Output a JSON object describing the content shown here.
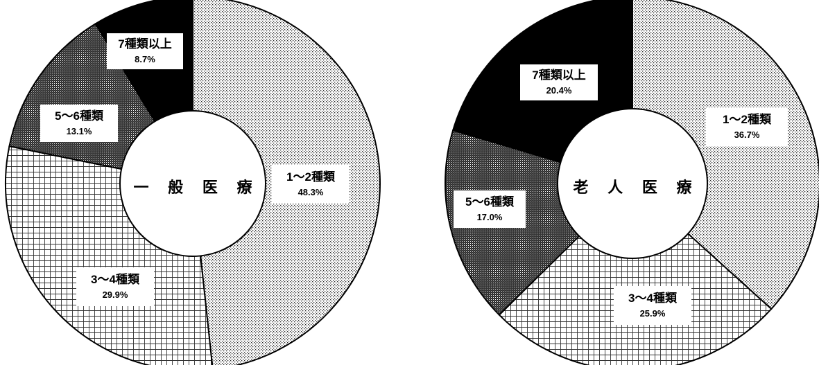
{
  "chart_data": [
    {
      "type": "pie",
      "title": "一 般 医 療",
      "categories": [
        "1～2種類",
        "3～4種類",
        "5～6種類",
        "7種類以上"
      ],
      "values": [
        48.3,
        29.9,
        13.1,
        8.7
      ],
      "value_labels": [
        "48.3%",
        "29.9%",
        "13.1%",
        "8.7%"
      ],
      "style": "donut",
      "start": "12 o'clock",
      "direction": "clockwise",
      "legend": "none"
    },
    {
      "type": "pie",
      "title": "老 人 医 療",
      "categories": [
        "1～2種類",
        "3～4種類",
        "5～6種類",
        "7種類以上"
      ],
      "values": [
        36.7,
        25.9,
        17.0,
        20.4
      ],
      "value_labels": [
        "36.7%",
        "25.9%",
        "17.0%",
        "20.4%"
      ],
      "style": "donut",
      "start": "12 o'clock",
      "direction": "clockwise",
      "legend": "none"
    }
  ],
  "fill_patterns": [
    "dotted-light",
    "grid-light",
    "dotted-dark",
    "solid-black"
  ]
}
